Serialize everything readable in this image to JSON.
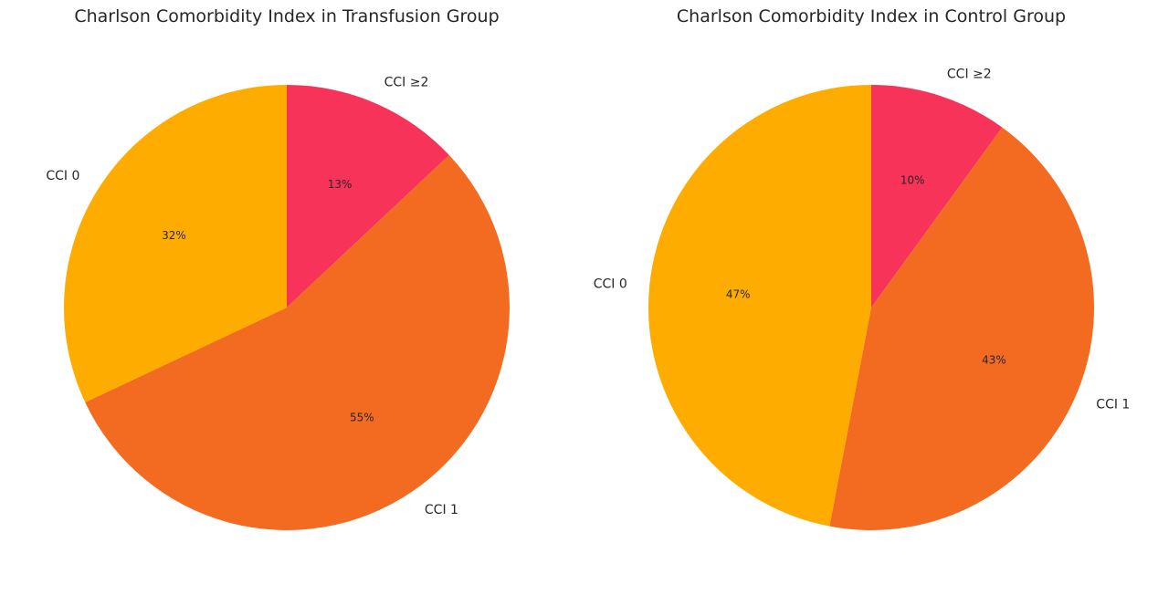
{
  "chart_data": [
    {
      "type": "pie",
      "title": "Charlson Comorbidity Index in Transfusion Group",
      "categories": [
        "CCI ≥2",
        "CCI 1",
        "CCI 0"
      ],
      "values": [
        13,
        55,
        32
      ],
      "value_labels": [
        "13%",
        "55%",
        "32%"
      ],
      "colors": [
        "#F7335A",
        "#F26B21",
        "#FEAC00"
      ],
      "start_angle": "top",
      "direction": "clockwise"
    },
    {
      "type": "pie",
      "title": "Charlson Comorbidity Index in Control Group",
      "categories": [
        "CCI ≥2",
        "CCI 1",
        "CCI 0"
      ],
      "values": [
        10,
        43,
        47
      ],
      "value_labels": [
        "10%",
        "43%",
        "47%"
      ],
      "colors": [
        "#F7335A",
        "#F26B21",
        "#FEAC00"
      ],
      "start_angle": "top",
      "direction": "clockwise"
    }
  ]
}
